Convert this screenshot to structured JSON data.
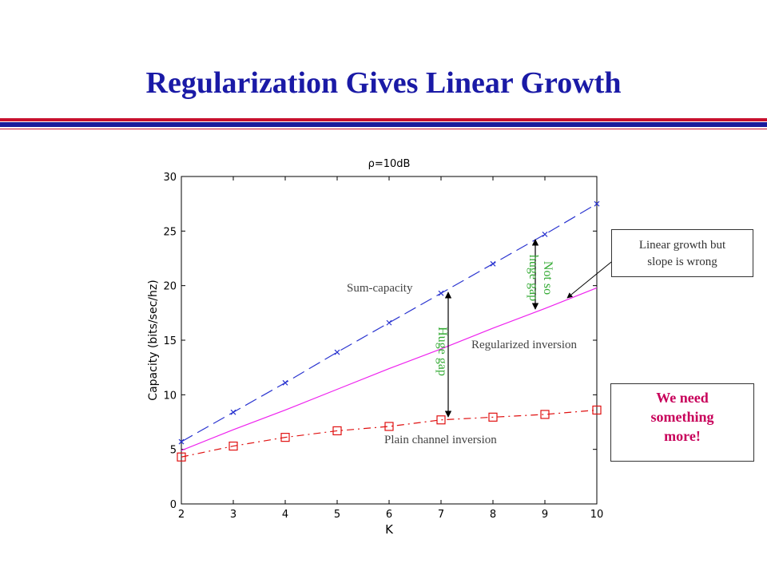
{
  "slide": {
    "title": "Regularization Gives Linear Growth",
    "callout_linear": {
      "line1": "Linear growth but",
      "line2": "slope is wrong"
    },
    "callout_need": {
      "line1": "We need",
      "line2": "something",
      "line3": "more!"
    }
  },
  "colors": {
    "title": "#1a1aa6",
    "sum_capacity": "#2b35d0",
    "regularized": "#ee22ee",
    "plain": "#e01010",
    "gap_annotation": "#33aa33",
    "callout_emphasis": "#c8005a"
  },
  "chart_data": {
    "type": "line",
    "title": "ρ=10dB",
    "xlabel": "K",
    "ylabel": "Capacity (bits/sec/hz)",
    "xlim": [
      2,
      10
    ],
    "ylim": [
      0,
      30
    ],
    "xticks": [
      2,
      3,
      4,
      5,
      6,
      7,
      8,
      9,
      10
    ],
    "yticks": [
      0,
      5,
      10,
      15,
      20,
      25,
      30
    ],
    "x": [
      2,
      3,
      4,
      5,
      6,
      7,
      8,
      9,
      10
    ],
    "series": [
      {
        "key": "sum",
        "values": [
          5.7,
          8.4,
          11.1,
          13.9,
          16.6,
          19.3,
          22.0,
          24.7,
          27.5
        ],
        "marker": "x",
        "dash": "dashed"
      },
      {
        "key": "reg",
        "values": [
          4.9,
          6.8,
          8.6,
          10.5,
          12.4,
          14.2,
          16.1,
          17.9,
          19.8
        ],
        "marker": "none",
        "dash": "solid"
      },
      {
        "key": "plain",
        "values": [
          4.3,
          5.3,
          6.1,
          6.7,
          7.1,
          7.7,
          7.95,
          8.2,
          8.6
        ],
        "marker": "square",
        "dash": "dashdot"
      }
    ],
    "labels": {
      "sum": "Sum-capacity",
      "reg": "Regularized inversion",
      "plain": "Plain channel inversion"
    },
    "annotations": {
      "huge_gap": "Huge gap",
      "not_so_line1": "Not so",
      "not_so_line2": "huge gap"
    },
    "grid": false
  }
}
